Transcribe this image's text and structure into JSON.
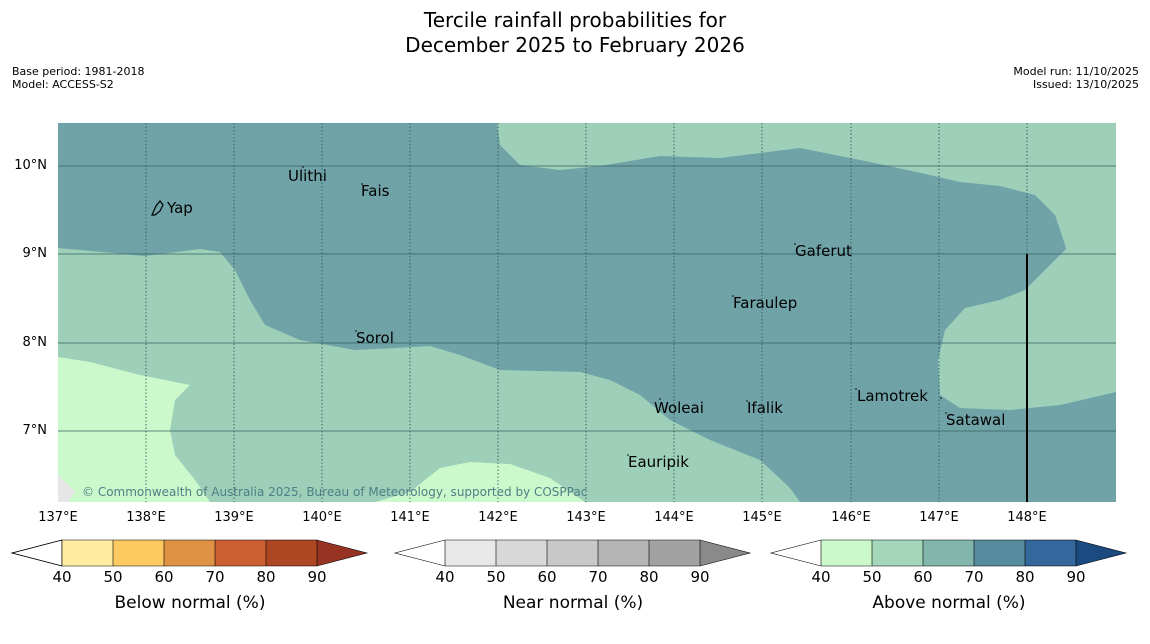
{
  "title": {
    "line1": "Tercile rainfall probabilities for",
    "line2": "December 2025 to February 2026"
  },
  "meta": {
    "base_period": "Base period: 1981-2018",
    "model": "Model: ACCESS-S2",
    "model_run": "Model run: 11/10/2025",
    "issued": "Issued: 13/10/2025"
  },
  "map": {
    "lat_labels": [
      "10°N",
      "9°N",
      "8°N",
      "7°N"
    ],
    "lon_labels": [
      "137°E",
      "138°E",
      "139°E",
      "140°E",
      "141°E",
      "142°E",
      "143°E",
      "144°E",
      "145°E",
      "146°E",
      "147°E",
      "148°E"
    ],
    "places": {
      "yap": "Yap",
      "ulithi": "Ulithi",
      "fais": "Fais",
      "gaferut": "Gaferut",
      "faraulep": "Faraulep",
      "sorol": "Sorol",
      "woleai": "Woleai",
      "ifalik": "Ifalik",
      "lamotrek": "Lamotrek",
      "satawal": "Satawal",
      "eauripik": "Eauripik"
    },
    "copyright": "© Commonwealth of Australia 2025, Bureau of Meteorology, supported by COSPPac",
    "colors": {
      "above_70_80": "#6fa3a7",
      "above_50_60": "#9ed0b9",
      "above_40_50": "#ccf9cb",
      "background_grey": "#e6e6e6"
    }
  },
  "colorbars": {
    "ticks": [
      "40",
      "50",
      "60",
      "70",
      "80",
      "90"
    ],
    "below": {
      "label": "Below normal (%)",
      "colors": [
        "#ffeca0",
        "#fdc961",
        "#e09244",
        "#cc5f32",
        "#ad4723",
        "#973322"
      ]
    },
    "near": {
      "label": "Near normal (%)",
      "colors": [
        "#e8e8e8",
        "#d8d8d8",
        "#c8c8c8",
        "#b4b4b4",
        "#a2a2a2",
        "#8a8a8a"
      ]
    },
    "above": {
      "label": "Above normal (%)",
      "colors": [
        "#ccf9cb",
        "#a4d6bb",
        "#82b5ab",
        "#568c9e",
        "#34679b",
        "#1a4a80"
      ]
    }
  }
}
